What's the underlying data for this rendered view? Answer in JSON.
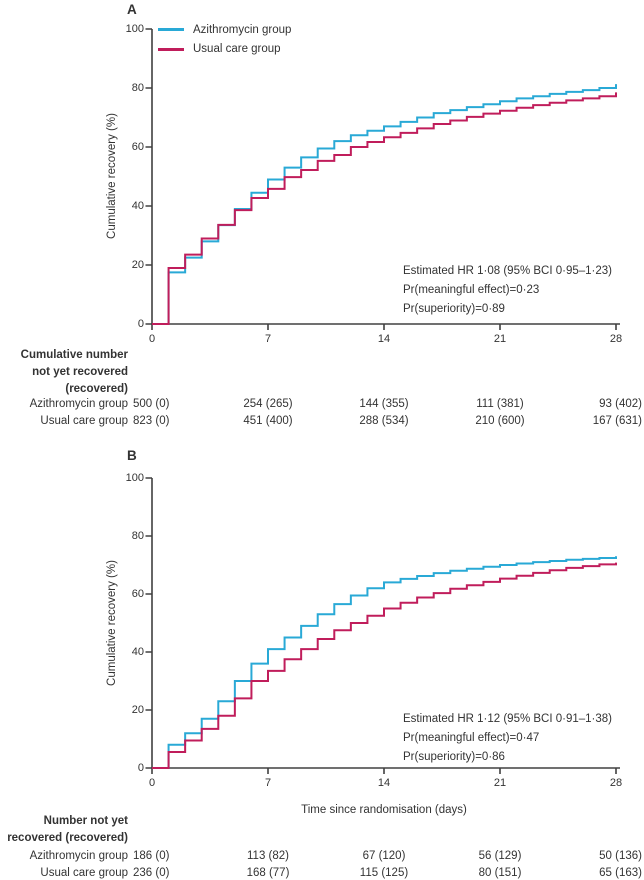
{
  "figure": {
    "panel_a": {
      "label": "A",
      "table": {
        "header": [
          "Cumulative number",
          "not yet recovered",
          "(recovered)"
        ],
        "rows": [
          {
            "label": "Azithromycin group",
            "values": [
              "500 (0)",
              "254 (265)",
              "144 (355)",
              "111 (381)",
              "93 (402)"
            ]
          },
          {
            "label": "Usual care group",
            "values": [
              "823 (0)",
              "451 (400)",
              "288 (534)",
              "210 (600)",
              "167 (631)"
            ]
          }
        ]
      }
    },
    "panel_b": {
      "label": "B",
      "table": {
        "header": [
          "Number not yet",
          "recovered (recovered)"
        ],
        "rows": [
          {
            "label": "Azithromycin group",
            "values": [
              "186 (0)",
              "113 (82)",
              "67 (120)",
              "56 (129)",
              "50 (136)"
            ]
          },
          {
            "label": "Usual care group",
            "values": [
              "236 (0)",
              "168 (77)",
              "115 (125)",
              "80 (151)",
              "65 (163)"
            ]
          }
        ]
      }
    }
  },
  "chart_data": [
    {
      "type": "line",
      "subtype": "step",
      "panel": "A",
      "ylabel": "Cumulative recovery (%)",
      "xlabel": "",
      "xlim": [
        0,
        28
      ],
      "ylim": [
        0,
        100
      ],
      "x_ticks": [
        0,
        7,
        14,
        21,
        28
      ],
      "y_ticks": [
        0,
        20,
        40,
        60,
        80,
        100
      ],
      "grid": false,
      "legend_position": "top-left",
      "annotation": [
        "Estimated HR 1·08 (95% BCI 0·95–1·23)",
        "Pr(meaningful effect)=0·23",
        "Pr(superiority)=0·89"
      ],
      "x": [
        0,
        1,
        2,
        3,
        4,
        5,
        6,
        7,
        8,
        9,
        10,
        11,
        12,
        13,
        14,
        15,
        16,
        17,
        18,
        19,
        20,
        21,
        22,
        23,
        24,
        25,
        26,
        27,
        28
      ],
      "series": [
        {
          "name": "Azithromycin group",
          "color": "#29A9D6",
          "values": [
            0,
            17.5,
            22.5,
            28,
            33.5,
            39,
            44.5,
            49,
            53,
            56.5,
            59.5,
            62,
            64,
            65.5,
            67,
            68.5,
            70,
            71.5,
            72.5,
            73.5,
            74.5,
            75.5,
            76.5,
            77.2,
            78,
            78.7,
            79.3,
            80,
            81.3
          ]
        },
        {
          "name": "Usual care group",
          "color": "#C01D5B",
          "values": [
            0,
            19,
            23.5,
            29,
            33.6,
            38.6,
            42.7,
            45.8,
            49.8,
            52.2,
            55.3,
            57.3,
            60,
            61.7,
            63.3,
            64.8,
            66.3,
            67.8,
            69,
            70.2,
            71.3,
            72.3,
            73.3,
            74.2,
            75,
            75.8,
            76.5,
            77.2,
            78.5
          ]
        }
      ]
    },
    {
      "type": "line",
      "subtype": "step",
      "panel": "B",
      "ylabel": "Cumulative recovery (%)",
      "xlabel": "Time since randomisation (days)",
      "xlim": [
        0,
        28
      ],
      "ylim": [
        0,
        100
      ],
      "x_ticks": [
        0,
        7,
        14,
        21,
        28
      ],
      "y_ticks": [
        0,
        20,
        40,
        60,
        80,
        100
      ],
      "grid": false,
      "legend_position": "none",
      "annotation": [
        "Estimated HR 1·12 (95% BCI 0·91–1·38)",
        "Pr(meaningful effect)=0·47",
        "Pr(superiority)=0·86"
      ],
      "x": [
        0,
        1,
        2,
        3,
        4,
        5,
        6,
        7,
        8,
        9,
        10,
        11,
        12,
        13,
        14,
        15,
        16,
        17,
        18,
        19,
        20,
        21,
        22,
        23,
        24,
        25,
        26,
        27,
        28
      ],
      "series": [
        {
          "name": "Azithromycin group",
          "color": "#29A9D6",
          "values": [
            0,
            8,
            12,
            17,
            23,
            30,
            36,
            41,
            45,
            49,
            53,
            56.5,
            59.5,
            62,
            64,
            65.2,
            66.2,
            67.2,
            68,
            68.7,
            69.4,
            70,
            70.5,
            71,
            71.4,
            71.8,
            72.1,
            72.4,
            73
          ]
        },
        {
          "name": "Usual care group",
          "color": "#C01D5B",
          "values": [
            0,
            5.5,
            9.5,
            13.5,
            18,
            24,
            30,
            33.5,
            37.5,
            41,
            44.5,
            47.5,
            50,
            52.5,
            55,
            57,
            58.8,
            60.3,
            61.8,
            63,
            64.2,
            65.3,
            66.3,
            67.3,
            68.2,
            69,
            69.6,
            70.2,
            70.8
          ]
        }
      ]
    }
  ]
}
